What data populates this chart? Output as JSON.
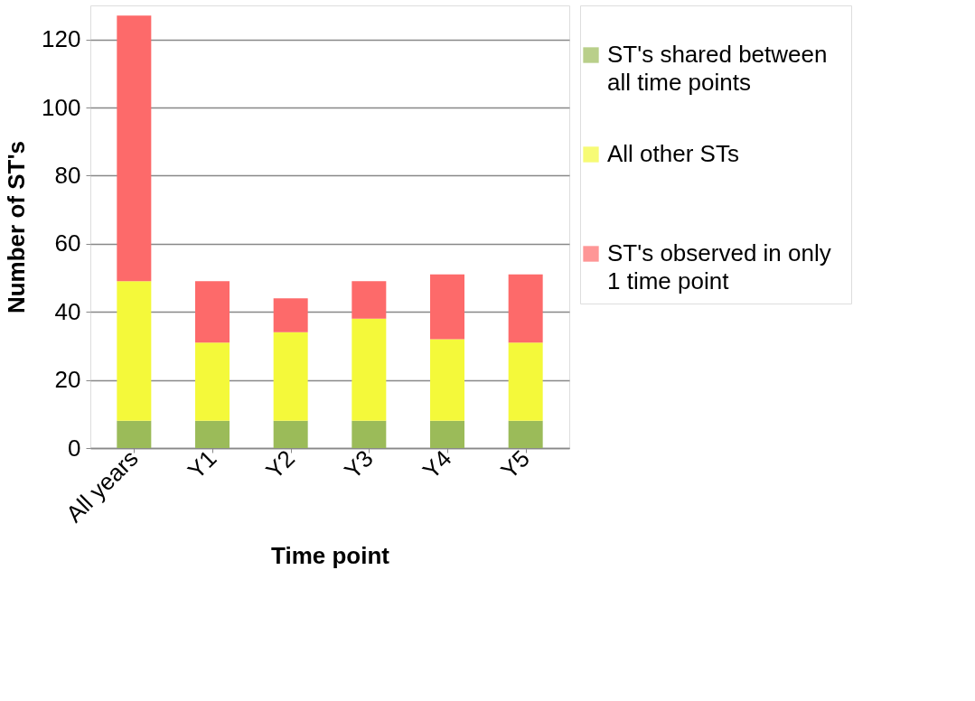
{
  "chart_data": {
    "type": "bar",
    "stacked": true,
    "xlabel": "Time point",
    "ylabel": "Number of ST's",
    "categories": [
      "All years",
      "Y1",
      "Y2",
      "Y3",
      "Y4",
      "Y5"
    ],
    "series": [
      {
        "name": "ST's shared between all time points",
        "color": "#9bbb59",
        "values": [
          8,
          8,
          8,
          8,
          8,
          8
        ]
      },
      {
        "name": "All other STs",
        "color": "#f4f93a",
        "values": [
          41,
          23,
          26,
          30,
          24,
          23
        ]
      },
      {
        "name": "ST's observed in only 1 time point",
        "color": "#fd6a6a",
        "values": [
          78,
          18,
          10,
          11,
          19,
          20
        ]
      }
    ],
    "ylim": [
      0,
      130
    ],
    "yticks": [
      0,
      20,
      40,
      60,
      80,
      100,
      120
    ],
    "grid": "y",
    "legend": "right"
  }
}
